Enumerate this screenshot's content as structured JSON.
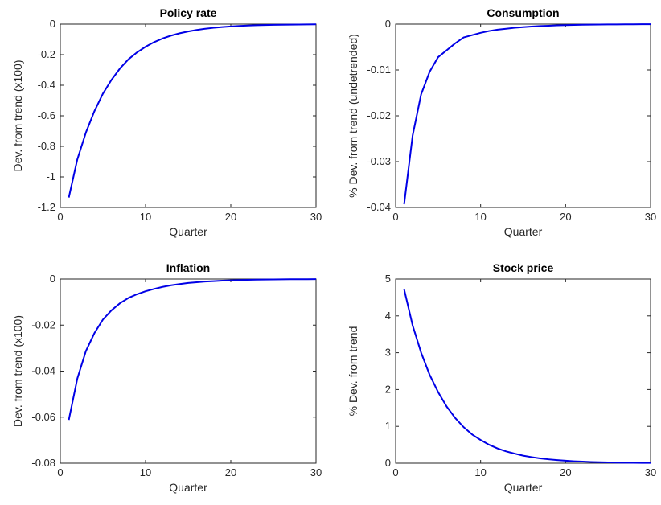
{
  "chart_data": [
    {
      "type": "line",
      "title": "Policy rate",
      "xlabel": "Quarter",
      "ylabel": "Dev. from trend (x100)",
      "xlim": [
        0,
        30
      ],
      "ylim": [
        -1.2,
        0
      ],
      "xticks": [
        0,
        10,
        20,
        30
      ],
      "yticks": [
        -1.2,
        -1,
        -0.8,
        -0.6,
        -0.4,
        -0.2,
        0
      ],
      "ytick_labels": [
        "-1.2",
        "-1",
        "-0.8",
        "-0.6",
        "-0.4",
        "-0.2",
        "0"
      ],
      "grid": false,
      "color": "#0000e6",
      "x": [
        1,
        2,
        3,
        4,
        5,
        6,
        7,
        8,
        9,
        10,
        11,
        12,
        13,
        14,
        15,
        16,
        17,
        18,
        19,
        20,
        21,
        22,
        23,
        24,
        25,
        26,
        27,
        28,
        29,
        30
      ],
      "y": [
        -1.135,
        -0.885,
        -0.71,
        -0.57,
        -0.455,
        -0.365,
        -0.29,
        -0.23,
        -0.185,
        -0.148,
        -0.118,
        -0.094,
        -0.075,
        -0.06,
        -0.048,
        -0.038,
        -0.03,
        -0.024,
        -0.019,
        -0.015,
        -0.012,
        -0.0095,
        -0.0075,
        -0.006,
        -0.0048,
        -0.0038,
        -0.003,
        -0.0024,
        -0.0019,
        -0.0015
      ]
    },
    {
      "type": "line",
      "title": "Consumption",
      "xlabel": "Quarter",
      "ylabel": "% Dev. from trend (undetrended)",
      "xlim": [
        0,
        30
      ],
      "ylim": [
        -0.04,
        0
      ],
      "xticks": [
        0,
        10,
        20,
        30
      ],
      "yticks": [
        -0.04,
        -0.03,
        -0.02,
        -0.01,
        0
      ],
      "ytick_labels": [
        "-0.04",
        "-0.03",
        "-0.02",
        "-0.01",
        "0"
      ],
      "grid": false,
      "color": "#0000e6",
      "x": [
        1,
        2,
        3,
        4,
        5,
        6,
        7,
        8,
        9,
        10,
        11,
        12,
        13,
        14,
        15,
        16,
        17,
        18,
        19,
        20,
        21,
        22,
        23,
        24,
        25,
        26,
        27,
        28,
        29,
        30
      ],
      "y": [
        -0.0393,
        -0.0243,
        -0.0153,
        -0.0104,
        -0.0072,
        -0.0057,
        -0.0042,
        -0.0029,
        -0.0024,
        -0.0019,
        -0.0015,
        -0.0012,
        -0.001,
        -0.0008,
        -0.00065,
        -0.00052,
        -0.00042,
        -0.00034,
        -0.00027,
        -0.00022,
        -0.00018,
        -0.00014,
        -0.00011,
        -9e-05,
        -7e-05,
        -6e-05,
        -5e-05,
        -4e-05,
        -3e-05,
        -2e-05
      ]
    },
    {
      "type": "line",
      "title": "Inflation",
      "xlabel": "Quarter",
      "ylabel": "Dev. from trend (x100)",
      "xlim": [
        0,
        30
      ],
      "ylim": [
        -0.08,
        0
      ],
      "xticks": [
        0,
        10,
        20,
        30
      ],
      "yticks": [
        -0.08,
        -0.06,
        -0.04,
        -0.02,
        0
      ],
      "ytick_labels": [
        "-0.08",
        "-0.06",
        "-0.04",
        "-0.02",
        "0"
      ],
      "grid": false,
      "color": "#0000e6",
      "x": [
        1,
        2,
        3,
        4,
        5,
        6,
        7,
        8,
        9,
        10,
        11,
        12,
        13,
        14,
        15,
        16,
        17,
        18,
        19,
        20,
        21,
        22,
        23,
        24,
        25,
        26,
        27,
        28,
        29,
        30
      ],
      "y": [
        -0.0612,
        -0.0432,
        -0.0313,
        -0.0235,
        -0.0176,
        -0.0136,
        -0.0105,
        -0.0082,
        -0.0066,
        -0.0053,
        -0.0043,
        -0.0034,
        -0.0027,
        -0.0022,
        -0.0017,
        -0.0014,
        -0.0011,
        -0.0009,
        -0.0007,
        -0.00055,
        -0.00044,
        -0.00035,
        -0.00028,
        -0.00022,
        -0.00018,
        -0.00014,
        -0.00011,
        -9e-05,
        -7e-05,
        -6e-05
      ]
    },
    {
      "type": "line",
      "title": "Stock price",
      "xlabel": "Quarter",
      "ylabel": "% Dev. from trend",
      "xlim": [
        0,
        30
      ],
      "ylim": [
        0,
        5
      ],
      "xticks": [
        0,
        10,
        20,
        30
      ],
      "yticks": [
        0,
        1,
        2,
        3,
        4,
        5
      ],
      "ytick_labels": [
        "0",
        "1",
        "2",
        "3",
        "4",
        "5"
      ],
      "grid": false,
      "color": "#0000e6",
      "x": [
        1,
        2,
        3,
        4,
        5,
        6,
        7,
        8,
        9,
        10,
        11,
        12,
        13,
        14,
        15,
        16,
        17,
        18,
        19,
        20,
        21,
        22,
        23,
        24,
        25,
        26,
        27,
        28,
        29,
        30
      ],
      "y": [
        4.72,
        3.74,
        3.0,
        2.4,
        1.93,
        1.54,
        1.23,
        0.98,
        0.78,
        0.63,
        0.5,
        0.4,
        0.32,
        0.26,
        0.205,
        0.165,
        0.13,
        0.105,
        0.084,
        0.067,
        0.053,
        0.043,
        0.034,
        0.027,
        0.022,
        0.017,
        0.014,
        0.011,
        0.009,
        0.007
      ]
    }
  ]
}
